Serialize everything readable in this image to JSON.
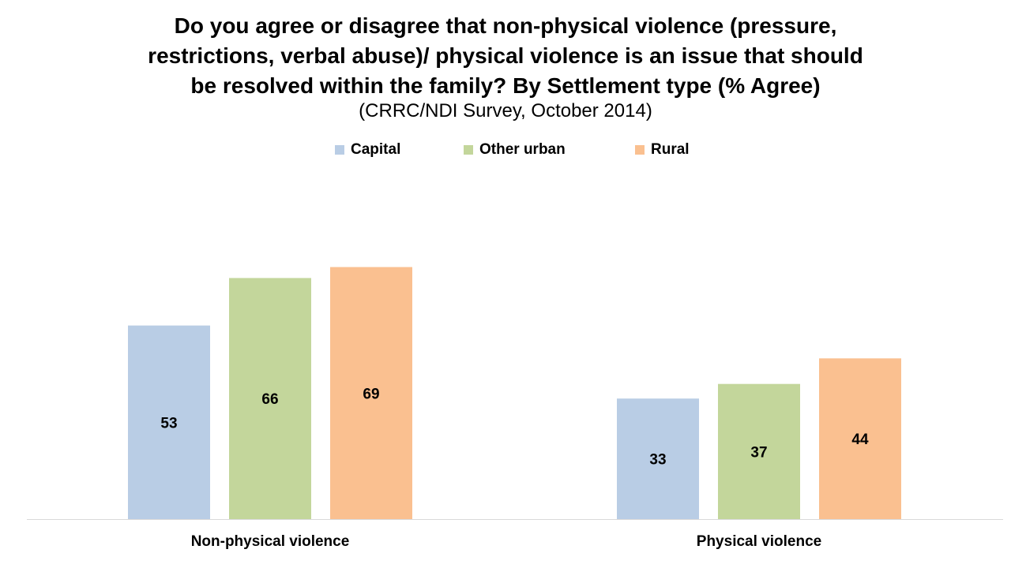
{
  "chart_data": {
    "type": "bar",
    "title_lines": [
      "Do you agree or disagree that non-physical violence (pressure,",
      "restrictions, verbal abuse)/ physical violence is an issue that should",
      "be resolved within the family? By Settlement type (% Agree)"
    ],
    "subtitle": "(CRRC/NDI Survey, October 2014)",
    "categories": [
      "Non-physical violence",
      "Physical violence"
    ],
    "series": [
      {
        "name": "Capital",
        "color": "#b9cde5",
        "values": [
          53,
          33
        ]
      },
      {
        "name": "Other urban",
        "color": "#c3d69b",
        "values": [
          66,
          37
        ]
      },
      {
        "name": "Rural",
        "color": "#fac090",
        "values": [
          69,
          44
        ]
      }
    ],
    "ylim": [
      0,
      100
    ],
    "legend_position": "top",
    "grid": false
  }
}
